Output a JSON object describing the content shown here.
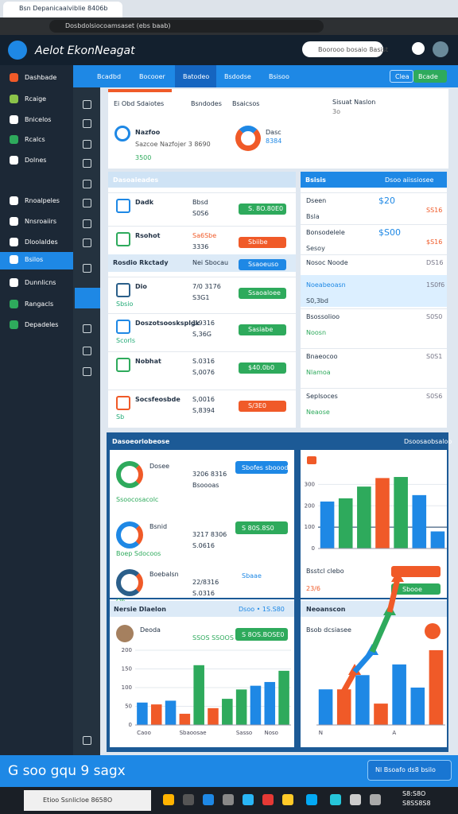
{
  "browser": {
    "tab_title": "Bsn Depanicaalviblie 8406b",
    "url": "Dosbdolsiocoamsaset (ebs baab)"
  },
  "app": {
    "logo": "Aelot EkonNeagat",
    "search": "Boorooo bosaio 8asist"
  },
  "sidebar": [
    "Dashbade",
    "Rcaige",
    "Bnicelos",
    "Rcalcs",
    "Dolnes",
    "Rnoalpeles",
    "Nnsroaiirs",
    "Dloolaldes",
    "Bsilos",
    "Dunnlicns",
    "Rangacls",
    "Depadeles"
  ],
  "nav": {
    "tabs": [
      "Bcadbd",
      "Bocooer",
      "Batodeo",
      "Bsdodse",
      "Bsisoo"
    ],
    "button_left": "Clea",
    "button_right": "Bcade"
  },
  "summary": {
    "headers": [
      "Ei Obd Sdaiotes",
      "Bsndodes",
      "Bsaicsos"
    ],
    "right_title": "Sisuat Naslon",
    "right_sub": "3o",
    "card1_title": "Nazfoo",
    "card1_sub": "Sazcoe Nazfojer 3 8690",
    "card1_value": "3500",
    "card2_title": "Dasc",
    "card2_value": "8384"
  },
  "left_panel": {
    "title": "Dasoaieades",
    "rows": [
      {
        "name": "Dadk",
        "value": "Bbsd",
        "value2": "S0S6",
        "badge": "S. 8O.80E0"
      },
      {
        "name": "Rsohot",
        "value": "Sa6Sbe",
        "value2": "3336",
        "badge": "Sbiibe"
      },
      {
        "name": "Rosdio Rkctady",
        "value": "Nei Sbocau",
        "badge": "Ssaoeuso"
      },
      {
        "name": "Dio",
        "sub": "Sbsio",
        "value": "7/0 3176",
        "value2": "S3G1",
        "badge": "Ssaoaloee"
      },
      {
        "name": "Doszotsoosksplgk",
        "sub": "Scorls",
        "value": "1.9316",
        "value2": "S,36G",
        "badge": "Sasiabe"
      },
      {
        "name": "Nobhat",
        "value": "S.0316",
        "value2": "S,0076",
        "badge": "$40.0b0"
      },
      {
        "name": "Socsfeosbde",
        "sub": "Sb",
        "value": "S,0016",
        "value2": "S,8394",
        "badge": "S/3E0"
      }
    ]
  },
  "right_panel": {
    "title": "Bsisis",
    "subtitle": "Dsoo aiissiosee",
    "rows": [
      {
        "name": "Dseen",
        "sub": "Bsla",
        "value": "$20",
        "value2": "SS16"
      },
      {
        "name": "Bonsodelele",
        "sub": "Sesoy",
        "value": "$S00",
        "value2": "$S16"
      },
      {
        "name": "Nosoc Noode",
        "value2": "DS16"
      },
      {
        "name": "Noeabeoasn",
        "sub": "S0,3bd",
        "value2": "1S0f6"
      },
      {
        "name": "Bsossolioo",
        "sub": "Noosn",
        "value2": "S0S0"
      },
      {
        "name": "Bnaeocoo",
        "sub": "Nlamoa",
        "value2": "S0S1"
      },
      {
        "name": "Seplsoces",
        "sub": "Neaose",
        "value2": "S0S6"
      }
    ]
  },
  "bottom": {
    "title": "Dasoeoriobeose",
    "right_title": "Dsoosaobsaloo",
    "rows": [
      {
        "name": "Dosee",
        "sub": "Ssoocosacolc",
        "value": "3206 8316",
        "value2": "Bsoooas",
        "badge": "Sbofes sbooode"
      },
      {
        "name": "Bsnid",
        "sub": "Boep Sdocoos",
        "value": "3217 8306",
        "value2": "S.0616",
        "badge": "S 80S.8S0"
      },
      {
        "name": "Boebalsn",
        "sub": "Ob",
        "value": "22/8316",
        "value2": "S.0316",
        "badge": "Sbaae"
      }
    ],
    "lower_title": "Nersie Dlaelon",
    "lower_right": "Dsoo • 1S.S80",
    "person": "Deoda",
    "person_value": "SSOS SSOOS",
    "person_badge": "S 8OS.BOSE0",
    "right_row": "Bsstcl clebo",
    "right_row_value": "23/6",
    "right_row_badge": "Sbooe",
    "right_lower_title": "Neoanscon",
    "right_lower_sub": "Bsob dcsiasee",
    "banner": "G soo gqu 9 sagx",
    "banner_button": "Nl Bsoafo ds8 bsilo"
  },
  "taskbar": {
    "search": "Etioo Ssnlicloe 8658O",
    "time": "S8:S8O",
    "date": "S8SS8S8"
  },
  "charts": [
    {
      "type": "bar",
      "ylim": [
        0,
        350
      ],
      "yticks": [
        0,
        100,
        200,
        300
      ],
      "values": [
        220,
        235,
        290,
        330,
        335,
        250,
        80
      ],
      "colors": [
        "#1e88e5",
        "#2eaa5c",
        "#2eaa5c",
        "#f05a28",
        "#2eaa5c",
        "#1e88e5",
        "#1e88e5"
      ]
    },
    {
      "type": "bar",
      "ylim": [
        0,
        200
      ],
      "yticks": [
        0,
        50,
        100,
        150,
        200
      ],
      "categories": [
        "Caoo",
        null,
        null,
        "Sbaoosae",
        null,
        null,
        null,
        "Sasso",
        null,
        "Noso",
        null
      ],
      "values": [
        60,
        55,
        65,
        30,
        160,
        45,
        70,
        95,
        105,
        115,
        145
      ],
      "colors": [
        "#1e88e5",
        "#f05a28",
        "#1e88e5",
        "#f05a28",
        "#2eaa5c",
        "#f05a28",
        "#2eaa5c",
        "#2eaa5c",
        "#1e88e5",
        "#1e88e5",
        "#2eaa5c"
      ]
    },
    {
      "type": "bar",
      "ylim": [
        0,
        250
      ],
      "categories": [
        "N",
        null,
        null,
        null,
        "A",
        null,
        null
      ],
      "values": [
        100,
        100,
        140,
        60,
        170,
        105,
        210
      ],
      "colors": [
        "#1e88e5",
        "#f05a28",
        "#1e88e5",
        "#f05a28",
        "#1e88e5",
        "#1e88e5",
        "#f05a28"
      ]
    }
  ]
}
